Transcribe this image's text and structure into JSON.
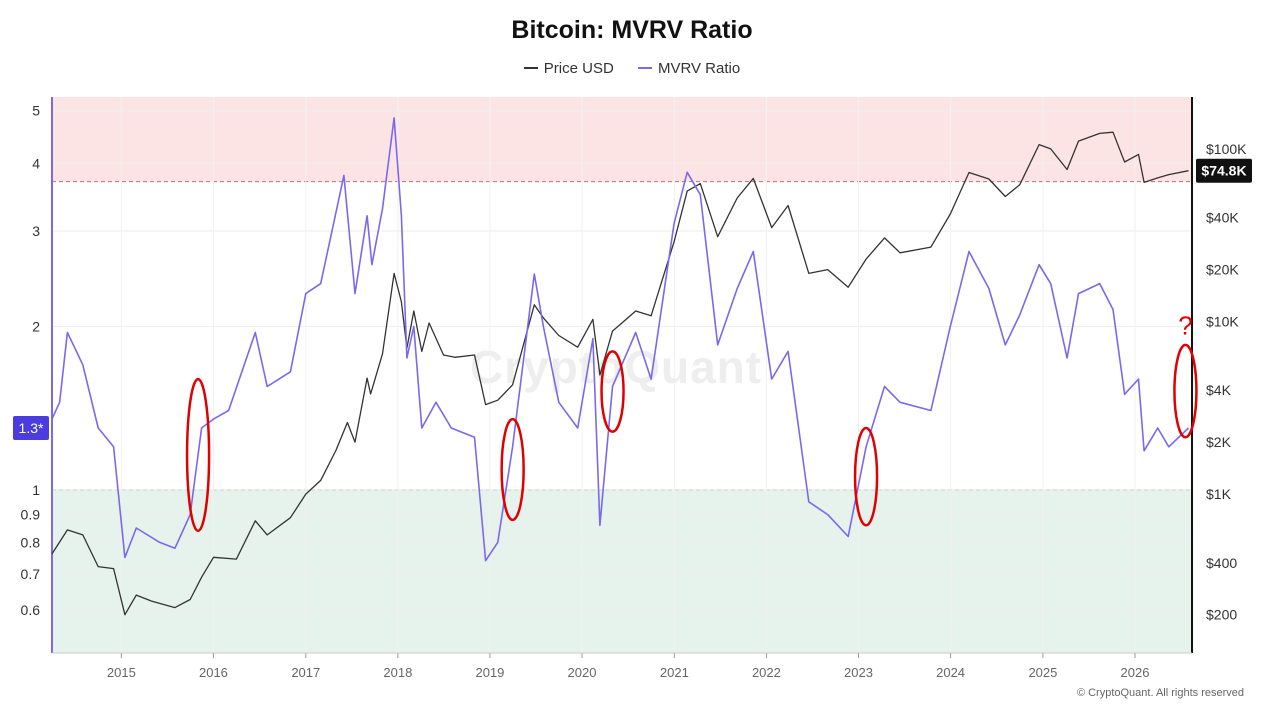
{
  "chart_data": {
    "type": "line",
    "title": "Bitcoin: MVRV Ratio",
    "legend": {
      "placement": "top-center"
    },
    "series": [
      {
        "name": "Price USD",
        "color": "#333333",
        "axis": "right",
        "points": [
          [
            "2014-04-01",
            450
          ],
          [
            "2014-06-01",
            620
          ],
          [
            "2014-08-01",
            580
          ],
          [
            "2014-10-01",
            380
          ],
          [
            "2014-12-01",
            370
          ],
          [
            "2015-01-15",
            200
          ],
          [
            "2015-03-01",
            260
          ],
          [
            "2015-05-01",
            240
          ],
          [
            "2015-08-01",
            220
          ],
          [
            "2015-10-01",
            245
          ],
          [
            "2015-11-15",
            330
          ],
          [
            "2016-01-01",
            430
          ],
          [
            "2016-04-01",
            420
          ],
          [
            "2016-06-15",
            700
          ],
          [
            "2016-08-01",
            580
          ],
          [
            "2016-11-01",
            730
          ],
          [
            "2017-01-01",
            1000
          ],
          [
            "2017-03-01",
            1200
          ],
          [
            "2017-05-01",
            1800
          ],
          [
            "2017-06-15",
            2600
          ],
          [
            "2017-07-15",
            2000
          ],
          [
            "2017-09-01",
            4700
          ],
          [
            "2017-09-15",
            3800
          ],
          [
            "2017-11-01",
            6500
          ],
          [
            "2017-12-17",
            19000
          ],
          [
            "2018-01-15",
            13000
          ],
          [
            "2018-02-06",
            7000
          ],
          [
            "2018-03-05",
            11500
          ],
          [
            "2018-04-06",
            6700
          ],
          [
            "2018-05-05",
            9800
          ],
          [
            "2018-07-01",
            6400
          ],
          [
            "2018-08-15",
            6200
          ],
          [
            "2018-11-01",
            6400
          ],
          [
            "2018-12-15",
            3300
          ],
          [
            "2019-02-01",
            3500
          ],
          [
            "2019-04-01",
            4300
          ],
          [
            "2019-06-26",
            12500
          ],
          [
            "2019-08-01",
            10500
          ],
          [
            "2019-10-01",
            8300
          ],
          [
            "2019-12-15",
            7100
          ],
          [
            "2020-02-13",
            10300
          ],
          [
            "2020-03-12",
            4900
          ],
          [
            "2020-05-01",
            8800
          ],
          [
            "2020-08-01",
            11500
          ],
          [
            "2020-10-01",
            10800
          ],
          [
            "2020-12-31",
            29000
          ],
          [
            "2021-02-21",
            57000
          ],
          [
            "2021-04-14",
            63000
          ],
          [
            "2021-06-22",
            31000
          ],
          [
            "2021-09-07",
            52000
          ],
          [
            "2021-11-10",
            67500
          ],
          [
            "2022-01-22",
            35000
          ],
          [
            "2022-03-28",
            47000
          ],
          [
            "2022-06-18",
            19000
          ],
          [
            "2022-09-01",
            20000
          ],
          [
            "2022-11-21",
            15800
          ],
          [
            "2023-01-31",
            23000
          ],
          [
            "2023-04-14",
            30500
          ],
          [
            "2023-06-15",
            25000
          ],
          [
            "2023-10-15",
            27000
          ],
          [
            "2023-12-31",
            42000
          ],
          [
            "2024-03-14",
            73000
          ],
          [
            "2024-06-01",
            67000
          ],
          [
            "2024-08-05",
            53000
          ],
          [
            "2024-10-01",
            62000
          ],
          [
            "2024-12-17",
            106000
          ],
          [
            "2025-02-01",
            100000
          ],
          [
            "2025-04-07",
            76000
          ],
          [
            "2025-05-22",
            111000
          ],
          [
            "2025-08-14",
            123000
          ],
          [
            "2025-10-06",
            125000
          ],
          [
            "2025-11-21",
            84000
          ],
          [
            "2026-01-15",
            93000
          ],
          [
            "2026-02-06",
            64000
          ],
          [
            "2026-04-01",
            68000
          ],
          [
            "2026-05-15",
            71000
          ],
          [
            "2026-08-01",
            74800
          ]
        ]
      },
      {
        "name": "MVRV Ratio",
        "color": "#7b68ee",
        "axis": "left",
        "points": [
          [
            "2014-04-01",
            1.35
          ],
          [
            "2014-05-01",
            1.45
          ],
          [
            "2014-06-01",
            1.95
          ],
          [
            "2014-08-01",
            1.7
          ],
          [
            "2014-10-01",
            1.3
          ],
          [
            "2014-12-01",
            1.2
          ],
          [
            "2015-01-15",
            0.75
          ],
          [
            "2015-03-01",
            0.85
          ],
          [
            "2015-06-01",
            0.8
          ],
          [
            "2015-08-01",
            0.78
          ],
          [
            "2015-10-01",
            0.9
          ],
          [
            "2015-11-15",
            1.3
          ],
          [
            "2016-01-01",
            1.35
          ],
          [
            "2016-03-01",
            1.4
          ],
          [
            "2016-06-15",
            1.95
          ],
          [
            "2016-08-01",
            1.55
          ],
          [
            "2016-11-01",
            1.65
          ],
          [
            "2017-01-01",
            2.3
          ],
          [
            "2017-03-01",
            2.4
          ],
          [
            "2017-06-01",
            3.8
          ],
          [
            "2017-07-15",
            2.3
          ],
          [
            "2017-09-01",
            3.2
          ],
          [
            "2017-09-20",
            2.6
          ],
          [
            "2017-11-01",
            3.3
          ],
          [
            "2017-12-17",
            4.85
          ],
          [
            "2018-01-15",
            3.2
          ],
          [
            "2018-02-06",
            1.75
          ],
          [
            "2018-03-05",
            2.0
          ],
          [
            "2018-04-06",
            1.3
          ],
          [
            "2018-06-01",
            1.45
          ],
          [
            "2018-08-01",
            1.3
          ],
          [
            "2018-11-01",
            1.25
          ],
          [
            "2018-12-15",
            0.74
          ],
          [
            "2019-02-01",
            0.8
          ],
          [
            "2019-04-01",
            1.2
          ],
          [
            "2019-06-26",
            2.5
          ],
          [
            "2019-08-01",
            2.0
          ],
          [
            "2019-10-01",
            1.45
          ],
          [
            "2019-12-15",
            1.3
          ],
          [
            "2020-02-13",
            1.9
          ],
          [
            "2020-03-12",
            0.86
          ],
          [
            "2020-05-01",
            1.55
          ],
          [
            "2020-08-01",
            1.95
          ],
          [
            "2020-10-01",
            1.6
          ],
          [
            "2020-12-31",
            3.1
          ],
          [
            "2021-02-21",
            3.85
          ],
          [
            "2021-04-14",
            3.5
          ],
          [
            "2021-06-22",
            1.85
          ],
          [
            "2021-09-07",
            2.35
          ],
          [
            "2021-11-10",
            2.75
          ],
          [
            "2022-01-22",
            1.6
          ],
          [
            "2022-03-28",
            1.8
          ],
          [
            "2022-06-18",
            0.95
          ],
          [
            "2022-09-01",
            0.9
          ],
          [
            "2022-11-21",
            0.82
          ],
          [
            "2023-01-31",
            1.2
          ],
          [
            "2023-04-14",
            1.55
          ],
          [
            "2023-06-15",
            1.45
          ],
          [
            "2023-10-15",
            1.4
          ],
          [
            "2023-12-31",
            2.0
          ],
          [
            "2024-03-14",
            2.75
          ],
          [
            "2024-06-01",
            2.35
          ],
          [
            "2024-08-05",
            1.85
          ],
          [
            "2024-10-01",
            2.1
          ],
          [
            "2024-12-17",
            2.6
          ],
          [
            "2025-02-01",
            2.4
          ],
          [
            "2025-04-07",
            1.75
          ],
          [
            "2025-05-22",
            2.3
          ],
          [
            "2025-08-14",
            2.4
          ],
          [
            "2025-10-06",
            2.15
          ],
          [
            "2025-11-21",
            1.5
          ],
          [
            "2026-01-15",
            1.6
          ],
          [
            "2026-02-06",
            1.18
          ],
          [
            "2026-04-01",
            1.3
          ],
          [
            "2026-05-15",
            1.2
          ],
          [
            "2026-08-01",
            1.3
          ]
        ]
      }
    ],
    "x_axis": {
      "type": "time",
      "range": [
        "2014-04-01",
        "2026-08-15"
      ],
      "tick_labels": [
        "2015",
        "2016",
        "2017",
        "2018",
        "2019",
        "2020",
        "2021",
        "2022",
        "2023",
        "2024",
        "2025",
        "2026"
      ]
    },
    "y_left": {
      "scale": "log",
      "range": [
        0.5,
        5.3
      ],
      "ticks": [
        0.6,
        0.7,
        0.8,
        0.9,
        1,
        2,
        3,
        4,
        5
      ],
      "tick_labels": [
        "0.6",
        "0.7",
        "0.8",
        "0.9",
        "1",
        "2",
        "3",
        "4",
        "5"
      ]
    },
    "y_right": {
      "scale": "log",
      "range": [
        120,
        200000
      ],
      "ticks": [
        200,
        400,
        1000,
        2000,
        4000,
        10000,
        20000,
        40000,
        100000
      ],
      "tick_labels": [
        "$200",
        "$400",
        "$1K",
        "$2K",
        "$4K",
        "$10K",
        "$20K",
        "$40K",
        "$100K"
      ]
    },
    "bands": [
      {
        "zone": "overvalued",
        "from": 3.7,
        "to": 5.3,
        "color": "#fde4e4",
        "line_color": "#c0707a"
      },
      {
        "zone": "undervalued",
        "from": 0.5,
        "to": 1.0,
        "color": "#e6f3ec",
        "line_color": "#5cab6c"
      }
    ],
    "markers": {
      "left_badge": {
        "value": 1.3,
        "label": "1.3*",
        "color": "#4b3ce0"
      },
      "right_badge": {
        "value": 74800,
        "label": "$74.8K",
        "color": "#111111"
      }
    },
    "annotations": [
      {
        "type": "ellipse",
        "date": "2015-11-01",
        "from": 0.84,
        "to": 1.6,
        "color": "#e00000"
      },
      {
        "type": "ellipse",
        "date": "2019-04-01",
        "from": 0.88,
        "to": 1.35,
        "color": "#e00000"
      },
      {
        "type": "ellipse",
        "date": "2020-05-01",
        "from": 1.28,
        "to": 1.8,
        "color": "#e00000"
      },
      {
        "type": "ellipse",
        "date": "2023-01-31",
        "from": 0.86,
        "to": 1.3,
        "color": "#e00000"
      },
      {
        "type": "ellipse",
        "date": "2026-07-20",
        "from": 1.25,
        "to": 1.85,
        "color": "#e00000"
      },
      {
        "type": "text",
        "label": "?",
        "date": "2026-07-20",
        "value": 2.0,
        "color": "#e00000"
      }
    ],
    "grid": true
  },
  "watermark": "CryptoQuant",
  "footer": {
    "copyright": "© CryptoQuant. All rights reserved"
  }
}
